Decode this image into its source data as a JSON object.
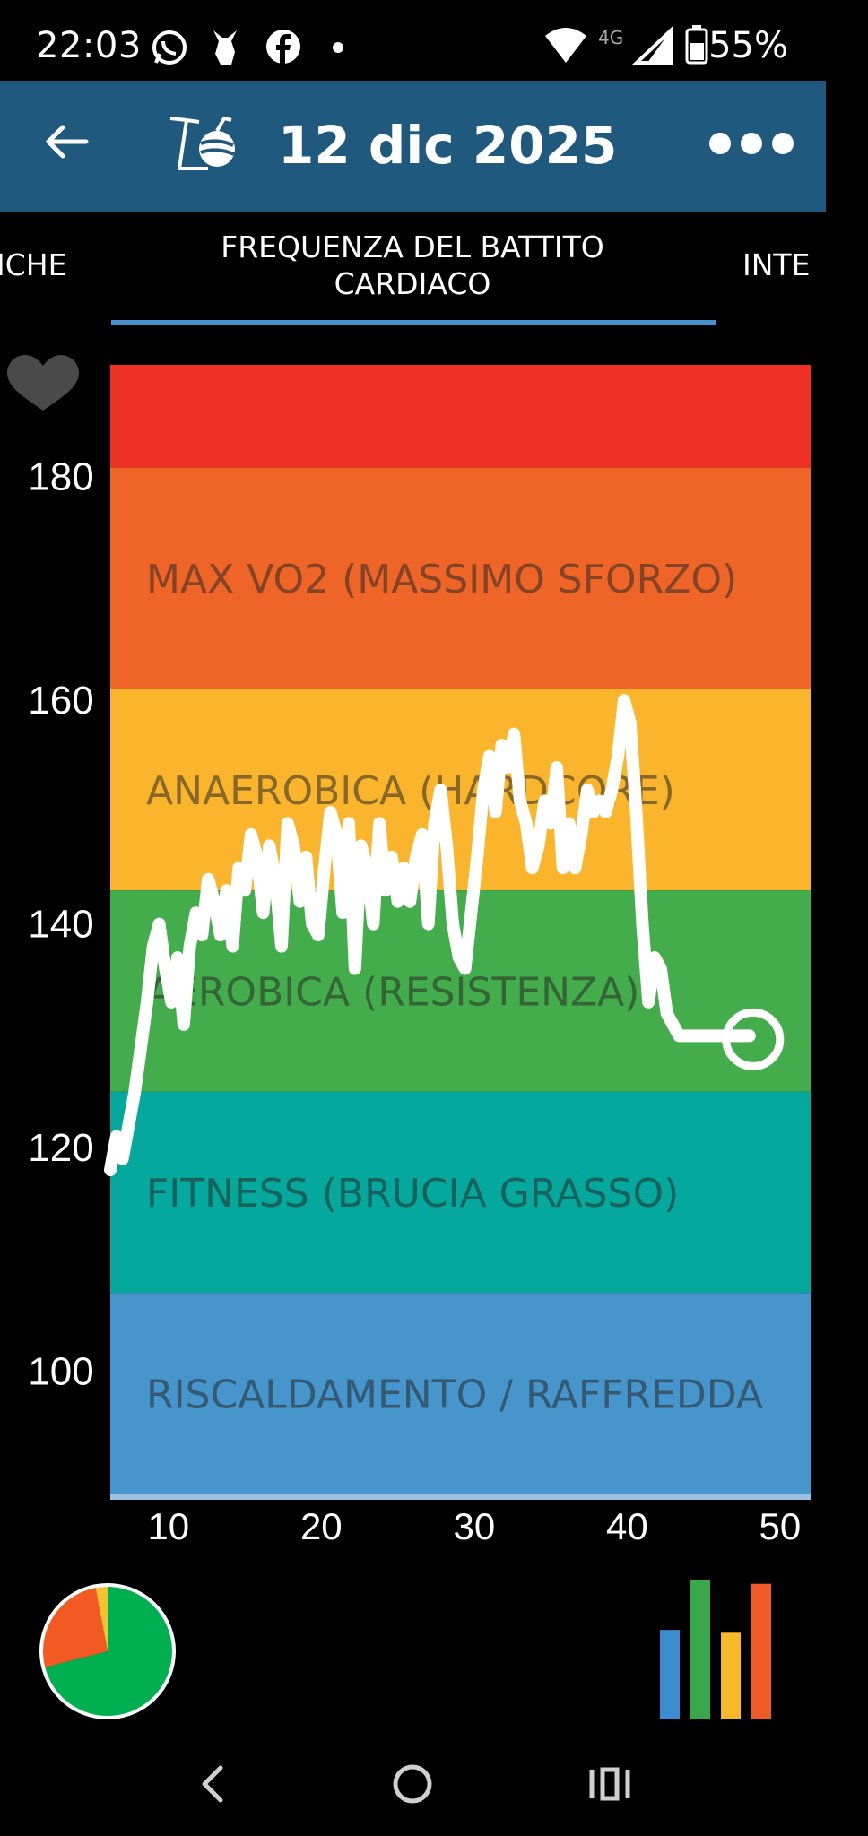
{
  "status_bar": {
    "time": "22:03",
    "notification_icons": [
      "whatsapp-icon",
      "donkey-app-icon",
      "facebook-icon",
      "dot-icon"
    ],
    "network_label": "4G",
    "battery": "55%"
  },
  "app_bar": {
    "title": "12 dic 2025",
    "back_icon": "arrow-left-icon",
    "logo_icon": "bike-logo-icon",
    "menu_icon": "more-horizontal-icon"
  },
  "tabs": {
    "left": "ICHE",
    "active": "FREQUENZA DEL BATTITO CARDIACO",
    "right": "INTE"
  },
  "colors": {
    "app_bar": "#1f5a7e",
    "tab_indicator": "#4a90d0",
    "zone_red": "#ee3124",
    "zone_orange": "#ef6427",
    "zone_yellow": "#fbb52c",
    "zone_green": "#44ad4b",
    "zone_teal": "#04a89c",
    "zone_blue": "#4795cd",
    "zone_lightblue": "#9bc0e0",
    "line": "#ffffff"
  },
  "chart_data": {
    "type": "line",
    "title": "",
    "xlabel": "",
    "ylabel": "",
    "icon": "heart-icon",
    "x_ticks": [
      10,
      20,
      30,
      40,
      50
    ],
    "y_ticks": [
      180,
      160,
      140,
      120,
      100
    ],
    "xlim": [
      6.2,
      52
    ],
    "ylim": [
      88.5,
      190
    ],
    "zones": [
      {
        "name": "",
        "from": 180.8,
        "to": 190,
        "color": "#ee3124"
      },
      {
        "name": "MAX VO2 (MASSIMO SFORZO)",
        "from": 161,
        "to": 180.8,
        "color": "#ef6427"
      },
      {
        "name": "ANAEROBICA (HARDCORE)",
        "from": 143,
        "to": 161,
        "color": "#fbb52c"
      },
      {
        "name": "AEROBICA (RESISTENZA)",
        "from": 125,
        "to": 143,
        "color": "#44ad4b"
      },
      {
        "name": "FITNESS (BRUCIA GRASSO)",
        "from": 107,
        "to": 125,
        "color": "#04a89c"
      },
      {
        "name": "RISCALDAMENTO / RAFFREDDA",
        "from": 89,
        "to": 107,
        "color": "#4795cd"
      },
      {
        "name": "",
        "from": 88.5,
        "to": 89,
        "color": "#9bc0e0"
      }
    ],
    "series": [
      {
        "x": [
          6.2,
          6.6,
          7.0,
          7.4,
          7.8,
          8.2,
          8.6,
          9.0,
          9.4,
          9.8,
          10.2,
          10.6,
          11.0,
          11.4,
          11.8,
          12.2,
          12.6,
          13.0,
          13.4,
          13.8,
          14.2,
          14.6,
          15.0,
          15.4,
          15.8,
          16.2,
          16.6,
          17.0,
          17.4,
          17.8,
          18.2,
          18.6,
          19.0,
          19.4,
          19.8,
          20.2,
          20.6,
          21.0,
          21.4,
          21.8,
          22.2,
          22.6,
          23.0,
          23.4,
          23.8,
          24.2,
          24.6,
          25.0,
          25.4,
          25.8,
          26.2,
          26.6,
          27.0,
          27.4,
          27.8,
          28.2,
          28.6,
          29.0,
          29.4,
          29.8,
          30.2,
          30.6,
          31.0,
          31.4,
          31.8,
          32.2,
          32.6,
          33.0,
          33.4,
          33.8,
          34.2,
          34.6,
          35.0,
          35.4,
          35.8,
          36.2,
          36.6,
          37.0,
          37.4,
          37.8,
          38.2,
          38.6,
          39.0,
          39.4,
          39.8,
          40.2,
          40.6,
          41.0,
          41.4,
          41.8,
          42.2,
          42.6,
          43.0,
          43.4,
          43.8,
          44.2,
          44.6,
          45.0,
          45.4,
          45.8,
          46.2,
          46.6,
          47.0,
          47.4,
          47.8,
          48.0
        ],
        "values": [
          118,
          121,
          119,
          122,
          125,
          129,
          133,
          138,
          140,
          136,
          133,
          137,
          131,
          138,
          141,
          139,
          144,
          142,
          139,
          143,
          138,
          145,
          143,
          148,
          146,
          141,
          147,
          144,
          138,
          149,
          147,
          142,
          146,
          140,
          139,
          145,
          150,
          148,
          141,
          149,
          136,
          147,
          145,
          140,
          149,
          143,
          146,
          142,
          145,
          142,
          146,
          148,
          140,
          149,
          152,
          147,
          140,
          137,
          136,
          141,
          146,
          152,
          155,
          150,
          156,
          154,
          157,
          151,
          149,
          145,
          147,
          151,
          149,
          154,
          145,
          149,
          145,
          148,
          152,
          150,
          151,
          150,
          152,
          155,
          160,
          158,
          150,
          140,
          133,
          137,
          136,
          132,
          131,
          130,
          130,
          130,
          130,
          130,
          130,
          130,
          130,
          130,
          130,
          130,
          130,
          130
        ],
        "end_marker": {
          "x": 48.0,
          "y": 130
        }
      }
    ]
  },
  "bottom": {
    "pie_icon": "zone-pie-chart-icon",
    "pie_slices": [
      {
        "zone": "green",
        "fraction": 0.71,
        "color": "#00b050"
      },
      {
        "zone": "orange",
        "fraction": 0.26,
        "color": "#f15a22"
      },
      {
        "zone": "yellow",
        "fraction": 0.03,
        "color": "#f7c232"
      }
    ],
    "bars_icon": "zone-bar-chart-icon",
    "bars": [
      {
        "zone": "blue",
        "value": 0.64,
        "color": "#3b8ed0"
      },
      {
        "zone": "green",
        "value": 1.0,
        "color": "#3aa84a"
      },
      {
        "zone": "yellow",
        "value": 0.62,
        "color": "#f7b82a"
      },
      {
        "zone": "orange",
        "value": 0.97,
        "color": "#ef5a28"
      }
    ]
  },
  "nav_bar": {
    "back": "nav-back-icon",
    "home": "nav-home-icon",
    "recents": "nav-recents-icon"
  }
}
